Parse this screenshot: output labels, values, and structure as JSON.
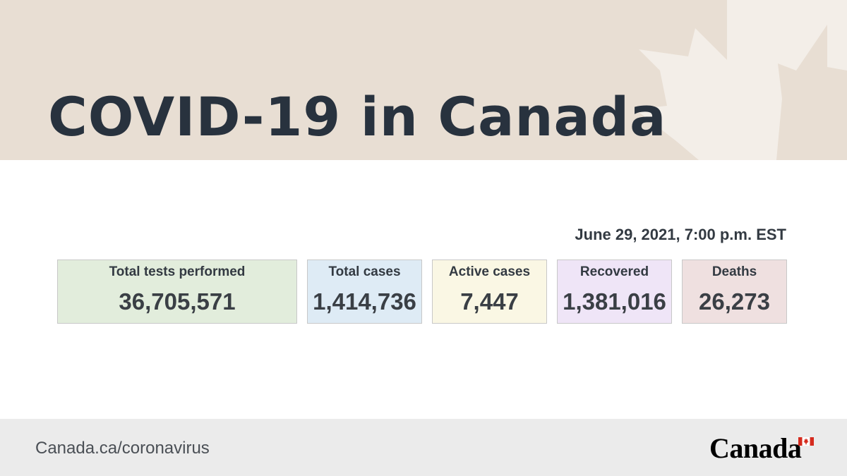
{
  "header": {
    "title": "COVID-19 in Canada",
    "background_color": "#e8ded3",
    "decoration_icon": "maple-leaf-icon"
  },
  "timestamp": "June 29, 2021, 7:00 p.m. EST",
  "stats": [
    {
      "label": "Total tests performed",
      "value": "36,705,571",
      "color": "#e2eddc"
    },
    {
      "label": "Total cases",
      "value": "1,414,736",
      "color": "#deebf5"
    },
    {
      "label": "Active cases",
      "value": "7,447",
      "color": "#faf7e4"
    },
    {
      "label": "Recovered",
      "value": "1,381,016",
      "color": "#efe5f7"
    },
    {
      "label": "Deaths",
      "value": "26,273",
      "color": "#efe0e0"
    }
  ],
  "footer": {
    "url": "Canada.ca/coronavirus",
    "wordmark": "Canada",
    "flag_color": "#d52b1e"
  }
}
